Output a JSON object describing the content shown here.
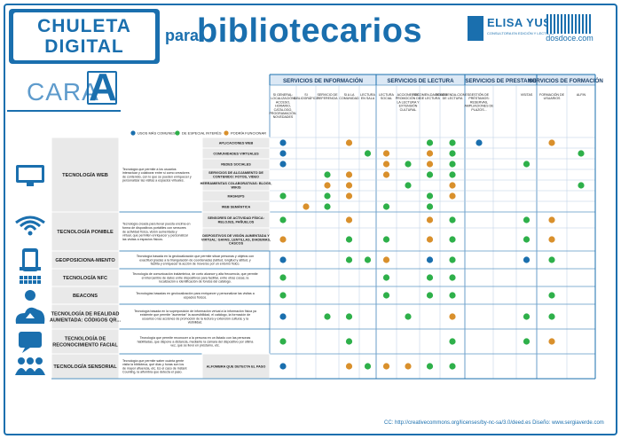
{
  "header": {
    "badge_line1": "CHULETA",
    "badge_line2": "DIGITAL",
    "para": "para",
    "bibliotecarios": "bibliotecarios",
    "logo1_name": "ELISA YUSTE",
    "logo1_sub": "CONSULTORA EN EDICIÓN Y LECTURA",
    "logo2_name": "dosdoce.com",
    "cara": "CARA",
    "cara_letter": "A"
  },
  "legend": [
    {
      "label": "USOS MÁS COMUNES",
      "color": "#1a6fae"
    },
    {
      "label": "DE ESPECIAL INTERÉS",
      "color": "#2eb04a"
    },
    {
      "label": "PODRÍA FUNCIONAR",
      "color": "#d9902c"
    }
  ],
  "groups": [
    {
      "label": "SERVICIOS DE INFORMACIÓN",
      "span": 5
    },
    {
      "label": "SERVICIOS DE LECTURA",
      "span": 4
    },
    {
      "label": "SERVICIOS DE PRESTAMO",
      "span": 3
    },
    {
      "label": "SERVICIOS DE FORMACIÓN",
      "span": 3
    }
  ],
  "columns": [
    "SI GENERAL: LOCALIZACIÓN, ACCESO, HORARIO, CATÁLOGO, PROGRAMACIÓN, NOVEDADES",
    "SI BIBLIOGRÁFICO",
    "SERVICIO DE REFERENCIA",
    "SI A LA COMUNIDAD",
    "LECTURA EN SALA",
    "LECTURA SOCIAL",
    "ACCIONES DE PROMOCIÓN DE LA LECTURA Y EXTENSIÓN CULTURAL",
    "RECOMEN-DACIONES DE LECTURA",
    "RECOMENDA-CIONES DE LECTURA",
    "GESTIÓN DE PRÉSTAMOS: RESERVAS, AMPLIACIONES DE PLAZOS...",
    "",
    "VISITAS",
    "FORMACIÓN DE USUARIOS",
    "ALFIN"
  ],
  "sections": [
    {
      "name": "TECNOLOGÍA WEB",
      "icon": "monitor-icon",
      "desc": "Tecnología que permite a los usuarios interactuar y colaborar entre sí como creadores de contenido, con lo que se pueden enriquecer y personalizar las visitas a espacios virtuales.",
      "rows": [
        "APLICACIONES WEB",
        "COMUNIDADES VIRTUALES",
        "REDES SOCIALES",
        "SERVICIOS DE ALOJAMIENTO DE CONTENIDO: FOTOS, VIDEO",
        "HERRAMIENTAS COLABORATIVAS: BLOGS, WIKIS",
        "MASHUPS",
        "WEB SEMÁNTICA"
      ]
    },
    {
      "name": "TECNOLOGÍA PONIBLE",
      "icon": "nfc-wifi-icon",
      "desc": "Tecnología creada para llevar puesta encima en forma de dispositivos portátiles con sensores de actividad física, visión aumentada y virtual, que permiten enriquecer y personalizar las visitas a espacios físicos.",
      "rows": [
        "SENSORES DE ACTIVIDAD FÍSICA: RELOJES, PAÑUELOS",
        "DISPOSITIVOS DE VISIÓN AUMENTADA Y VIRTUAL: GAFAS, LENTILLAS, DIADEMAS, CASCOS"
      ]
    },
    {
      "name": "GEOPOSICIONA-MIENTO",
      "icon": "smartphone-icon",
      "desc": "Tecnología basada en la geolocalización que permite situar personas y objetos con exactitud gracias a la triangulación de coordenadas (latitud, longitud y altitud, y facilita y enriquecer la acción de moverse por un entorno físico.",
      "rows": []
    },
    {
      "name": "TECNOLOGÍA NFC",
      "icon": "qr-code-icon",
      "desc": "Tecnología de comunicación inalámbrica, de corto alcance y alta frecuencia, que permite el intercambio de datos entre dispositivos para facilitar, entre otras cosas, la localización e identificación de fondos del catálogo.",
      "rows": []
    },
    {
      "name": "BEACONS",
      "icon": "beacon-icon",
      "desc": "Tecnologías basadas en geolocalización para enriquecer y personalizar las visitas a espacios físicos.",
      "rows": []
    },
    {
      "name": "TECNOLOGÍA DE REALIDAD AUMENTADA: CÓDIGOS QR...",
      "icon": "cloud-upload-icon",
      "desc": "Tecnología basada en la superposición de información virtual a la información física ya existente que permite \"aumentar\" la accesibilidad, el catálogo, la formación de usuarios o las acciones de promoción de la lectura y extensión cultural, y la visibilidad.",
      "rows": []
    },
    {
      "name": "TECNOLOGÍA DE RECONOCIMIENTO FACIAL",
      "icon": "face-chat-icon",
      "desc": "Tecnología que permite reconocer a la persona en un listado con las personas habilitadas, que dispone a distancia, mediante la cámara del dispositivo por última vez, qué se llevó en préstamo, etc.",
      "rows": []
    },
    {
      "name": "TECNOLOGÍA SENSORIAL",
      "icon": "people-icon",
      "desc": "Tecnología que permite saber cuánta gente visita la biblioteca, qué días y horas son los de mayor afluencia, etc. Es el caso de Instant Counting, la alfombra que detecta el paso.",
      "rows": [
        "ALFOMBRA QUE DETECTA EL PASO"
      ]
    }
  ],
  "dots": {
    "_legend": "per grid row: list of [column_index, color_key]; b=blue g=green o=orange",
    "rows": [
      [
        [
          0,
          "b"
        ],
        [
          3,
          "o"
        ],
        [
          7,
          "g"
        ],
        [
          8,
          "g"
        ],
        [
          9,
          "b"
        ],
        [
          12,
          "o"
        ]
      ],
      [
        [
          0,
          "b"
        ],
        [
          4,
          "g"
        ],
        [
          5,
          "o"
        ],
        [
          7,
          "o"
        ],
        [
          8,
          "g"
        ],
        [
          13,
          "g"
        ]
      ],
      [
        [
          0,
          "b"
        ],
        [
          5,
          "o"
        ],
        [
          6,
          "g"
        ],
        [
          7,
          "o"
        ],
        [
          8,
          "g"
        ],
        [
          11,
          "g"
        ]
      ],
      [
        [
          2,
          "g"
        ],
        [
          3,
          "o"
        ],
        [
          5,
          "o"
        ],
        [
          7,
          "g"
        ],
        [
          8,
          "g"
        ]
      ],
      [
        [
          2,
          "o"
        ],
        [
          3,
          "o"
        ],
        [
          6,
          "g"
        ],
        [
          8,
          "o"
        ],
        [
          13,
          "g"
        ]
      ],
      [
        [
          0,
          "g"
        ],
        [
          2,
          "g"
        ],
        [
          3,
          "o"
        ],
        [
          7,
          "g"
        ],
        [
          8,
          "o"
        ]
      ],
      [
        [
          1,
          "o"
        ],
        [
          2,
          "g"
        ],
        [
          5,
          "g"
        ],
        [
          7,
          "g"
        ]
      ],
      [
        [
          0,
          "g"
        ],
        [
          3,
          "o"
        ],
        [
          7,
          "o"
        ],
        [
          8,
          "g"
        ],
        [
          11,
          "g"
        ],
        [
          12,
          "o"
        ]
      ],
      [
        [
          0,
          "o"
        ],
        [
          3,
          "g"
        ],
        [
          5,
          "g"
        ],
        [
          7,
          "o"
        ],
        [
          8,
          "g"
        ],
        [
          11,
          "g"
        ],
        [
          12,
          "o"
        ]
      ],
      [
        [
          0,
          "b"
        ],
        [
          3,
          "g"
        ],
        [
          4,
          "g"
        ],
        [
          5,
          "o"
        ],
        [
          7,
          "b"
        ],
        [
          8,
          "g"
        ],
        [
          11,
          "b"
        ],
        [
          12,
          "g"
        ]
      ],
      [
        [
          0,
          "g"
        ],
        [
          5,
          "g"
        ],
        [
          7,
          "g"
        ],
        [
          8,
          "g"
        ]
      ],
      [
        [
          0,
          "g"
        ],
        [
          5,
          "g"
        ],
        [
          7,
          "g"
        ],
        [
          8,
          "g"
        ],
        [
          12,
          "g"
        ]
      ],
      [
        [
          0,
          "b"
        ],
        [
          2,
          "g"
        ],
        [
          3,
          "g"
        ],
        [
          6,
          "g"
        ],
        [
          8,
          "o"
        ],
        [
          11,
          "g"
        ],
        [
          12,
          "g"
        ]
      ],
      [
        [
          0,
          "g"
        ],
        [
          3,
          "g"
        ],
        [
          8,
          "g"
        ],
        [
          11,
          "g"
        ],
        [
          12,
          "o"
        ]
      ],
      [
        [
          0,
          "b"
        ],
        [
          3,
          "o"
        ],
        [
          4,
          "g"
        ],
        [
          5,
          "o"
        ],
        [
          6,
          "o"
        ],
        [
          7,
          "g"
        ],
        [
          8,
          "g"
        ]
      ]
    ]
  },
  "footer": "CC: http://creativecommons.org/licenses/by-nc-sa/3.0/deed.es   Diseño: www.sergiaverde.com"
}
